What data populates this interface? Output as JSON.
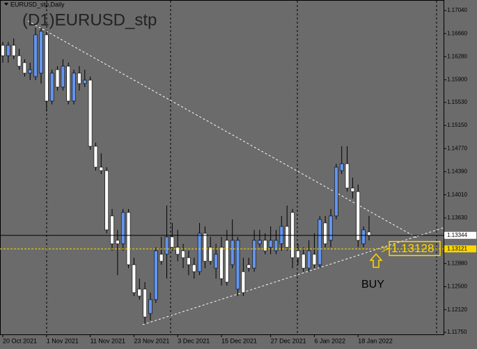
{
  "chart_data": {
    "type": "candlestick",
    "subtitle": "EURUSD_stp,Daily",
    "title": "(D1)EURUSD_stp",
    "x": [
      "20 Oct 2021",
      null,
      null,
      null,
      null,
      null,
      null,
      null,
      "1 Nov 2021",
      null,
      null,
      null,
      null,
      null,
      null,
      null,
      "11 Nov 2021",
      null,
      null,
      null,
      null,
      null,
      null,
      null,
      "23 Nov 2021",
      null,
      null,
      null,
      null,
      null,
      null,
      null,
      "3 Dec 2021",
      null,
      null,
      null,
      null,
      null,
      null,
      null,
      "15 Dec 2021",
      null,
      null,
      null,
      null,
      null,
      null,
      null,
      null,
      "27 Dec 2021",
      null,
      null,
      null,
      null,
      null,
      null,
      null,
      "6 Jan 2022",
      null,
      null,
      null,
      null,
      null,
      null,
      null,
      "18 Jan 2022",
      null,
      null
    ],
    "open": [
      1.16468,
      1.16296,
      1.16468,
      1.16296,
      1.16182,
      1.1601,
      1.15953,
      1.1601,
      1.1664,
      1.15552,
      1.16067,
      1.15781,
      1.16124,
      1.15552,
      1.1601,
      1.15838,
      1.15895,
      1.14808,
      1.14464,
      1.14407,
      1.13663,
      1.13262,
      1.13205,
      1.1372,
      1.12861,
      1.1246,
      1.1246,
      1.12059,
      1.12288,
      1.13033,
      1.13033,
      1.13319,
      1.13147,
      1.1309,
      1.12976,
      1.12861,
      1.12747,
      1.13377,
      1.13147,
      1.12804,
      1.13147,
      1.13262,
      1.12861,
      1.1246,
      1.12747,
      1.12861,
      1.12804,
      1.13205,
      1.13262,
      1.13147,
      1.1309,
      1.13205,
      1.13491,
      1.1372,
      1.1309,
      1.13033,
      1.12804,
      1.13033,
      1.12861,
      1.13548,
      1.13262,
      1.13663,
      1.14407,
      1.14521,
      1.14121,
      1.14063,
      1.13205,
      1.13399
    ],
    "high": [
      1.16525,
      1.16525,
      1.16582,
      1.16411,
      1.16239,
      1.16182,
      1.16754,
      1.16754,
      1.16697,
      1.16067,
      1.16124,
      1.16239,
      1.16182,
      1.16067,
      1.16124,
      1.16067,
      1.15953,
      1.14865,
      1.14693,
      1.14464,
      1.13777,
      1.13434,
      1.13777,
      1.13777,
      1.12976,
      1.12632,
      1.12575,
      1.12403,
      1.13147,
      1.13319,
      1.13834,
      1.13548,
      1.13434,
      1.13205,
      1.1309,
      1.12976,
      1.13548,
      1.13491,
      1.13319,
      1.13205,
      1.13319,
      1.13434,
      1.13605,
      1.13319,
      1.12976,
      1.12976,
      1.13434,
      1.13434,
      1.13377,
      1.13491,
      1.13434,
      1.13663,
      1.13834,
      1.13777,
      1.13205,
      1.13147,
      1.13262,
      1.13377,
      1.13663,
      1.13663,
      1.13777,
      1.14521,
      1.14808,
      1.14808,
      1.14292,
      1.14178,
      1.13491,
      1.13663
    ],
    "low": [
      1.16182,
      1.16182,
      1.16239,
      1.16067,
      1.15953,
      1.15895,
      1.15895,
      1.15838,
      1.1538,
      1.15495,
      1.15724,
      1.15724,
      1.15495,
      1.15495,
      1.15724,
      1.15781,
      1.1475,
      1.14407,
      1.1435,
      1.13377,
      1.1309,
      1.12689,
      1.1309,
      1.12804,
      1.12346,
      1.12288,
      1.11888,
      1.11945,
      1.12231,
      1.12861,
      1.12632,
      1.1309,
      1.12918,
      1.12804,
      1.12689,
      1.12632,
      1.12689,
      1.12804,
      1.12861,
      1.12632,
      1.12517,
      1.12517,
      1.12804,
      1.12346,
      1.12346,
      1.12747,
      1.12747,
      1.13147,
      1.13033,
      1.13033,
      1.13033,
      1.1309,
      1.1309,
      1.12804,
      1.12861,
      1.12747,
      1.12747,
      1.12804,
      1.12804,
      1.13147,
      1.13147,
      1.13605,
      1.1435,
      1.14063,
      1.13949,
      1.13147,
      1.13147,
      1.13262
    ],
    "close": [
      1.16296,
      1.16468,
      1.16296,
      1.16124,
      1.1601,
      1.16067,
      1.1664,
      1.16697,
      1.15552,
      1.1601,
      1.15781,
      1.16124,
      1.15552,
      1.1601,
      1.15838,
      1.15895,
      1.14808,
      1.14464,
      1.14407,
      1.13434,
      1.13205,
      1.13205,
      1.1372,
      1.12861,
      1.12403,
      1.12346,
      1.12002,
      1.12288,
      1.1309,
      1.12918,
      1.13319,
      1.13147,
      1.13033,
      1.12976,
      1.12861,
      1.12747,
      1.13377,
      1.12918,
      1.12918,
      1.13033,
      1.12632,
      1.12575,
      1.13262,
      1.13262,
      1.12403,
      1.12804,
      1.13262,
      1.13262,
      1.1309,
      1.13262,
      1.13262,
      1.13491,
      1.13147,
      1.12976,
      1.12976,
      1.12804,
      1.1309,
      1.12861,
      1.13605,
      1.13205,
      1.13663,
      1.14464,
      1.14521,
      1.14121,
      1.14063,
      1.13262,
      1.13434,
      1.13342
    ],
    "up_color": "#6495ed",
    "down_color": "#ffffff",
    "ylim": [
      1.11716,
      1.17212
    ],
    "yticks": [
      {
        "value": 1.1704,
        "label": "1.17040"
      },
      {
        "value": 1.1666,
        "label": "1.16660"
      },
      {
        "value": 1.1628,
        "label": "1.16280"
      },
      {
        "value": 1.159,
        "label": "1.15900"
      },
      {
        "value": 1.1553,
        "label": "1.15530"
      },
      {
        "value": 1.1515,
        "label": "1.15150"
      },
      {
        "value": 1.1477,
        "label": "1.14770"
      },
      {
        "value": 1.1439,
        "label": "1.14390"
      },
      {
        "value": 1.1401,
        "label": "1.14010"
      },
      {
        "value": 1.1363,
        "label": "1.13630"
      },
      {
        "value": 1.1288,
        "label": "1.12880"
      },
      {
        "value": 1.125,
        "label": "1.12500"
      },
      {
        "value": 1.1212,
        "label": "1.12120"
      },
      {
        "value": 1.1175,
        "label": "1.11750"
      }
    ],
    "price_lines": [
      1.13344,
      1.13121
    ],
    "price_line_colors": [
      "#000000",
      "#ffd700"
    ],
    "signal_price": 1.13128,
    "signal_text": "BUY"
  }
}
